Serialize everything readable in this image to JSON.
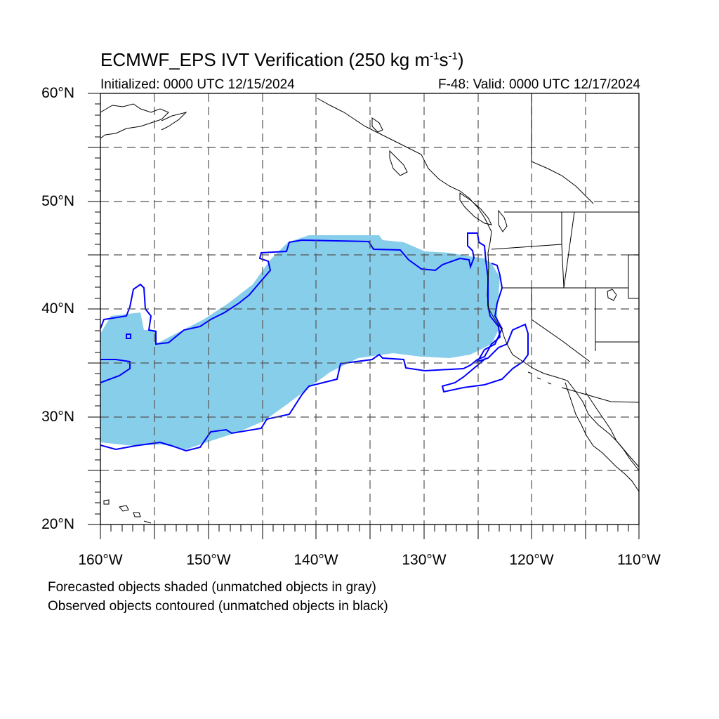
{
  "title": {
    "main": "ECMWF_EPS IVT Verification (250 kg m",
    "exp1": "-1",
    "mid": "s",
    "exp2": "-1",
    "close": ")"
  },
  "subtitle": {
    "initialized": "Initialized: 0000 UTC 12/15/2024",
    "valid": "F-48: Valid: 0000 UTC 12/17/2024"
  },
  "axes": {
    "lat_labels": [
      "60°N",
      "50°N",
      "40°N",
      "30°N",
      "20°N"
    ],
    "lon_labels": [
      "160°W",
      "150°W",
      "140°W",
      "130°W",
      "120°W",
      "110°W"
    ]
  },
  "caption": {
    "line1": "Forecasted objects shaded (unmatched objects in gray)",
    "line2": "Observed objects contoured (unmatched objects in black)"
  },
  "colors": {
    "forecast_fill": "#87ceeb",
    "observed_contour": "#0000ff",
    "coastline": "#000000",
    "grid": "#555555"
  }
}
